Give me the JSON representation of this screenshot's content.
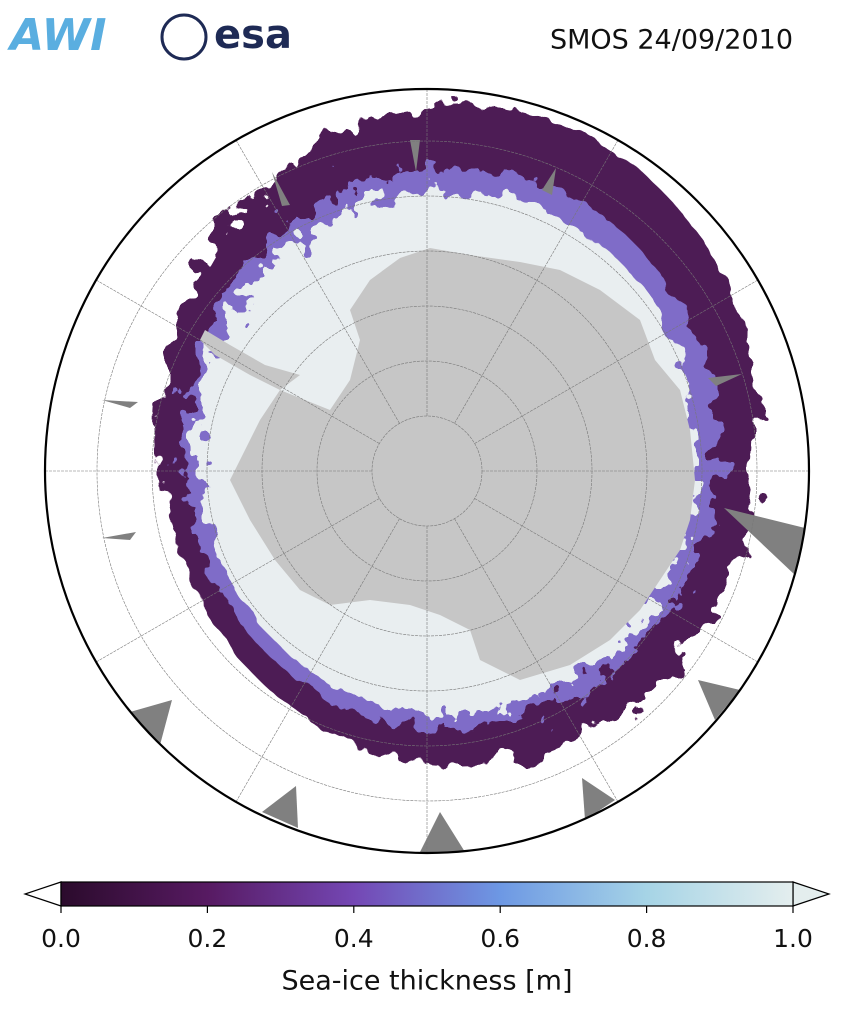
{
  "header": {
    "title": "SMOS 24/09/2010",
    "logos": [
      "AWI",
      "esa"
    ]
  },
  "colorbar": {
    "label": "Sea-ice thickness [m]",
    "range": [
      0,
      1
    ],
    "ticks": [
      {
        "value": 0,
        "label": "0.0"
      },
      {
        "value": 0.2,
        "label": "0.2"
      },
      {
        "value": 0.4,
        "label": "0.4"
      },
      {
        "value": 0.6,
        "label": "0.6"
      },
      {
        "value": 0.8,
        "label": "0.8"
      },
      {
        "value": 1,
        "label": "1.0"
      }
    ],
    "colors": [
      "#2b0b2c",
      "#571a62",
      "#7447b4",
      "#6d98e4",
      "#a6d4e6",
      "#e4eeee"
    ]
  }
}
